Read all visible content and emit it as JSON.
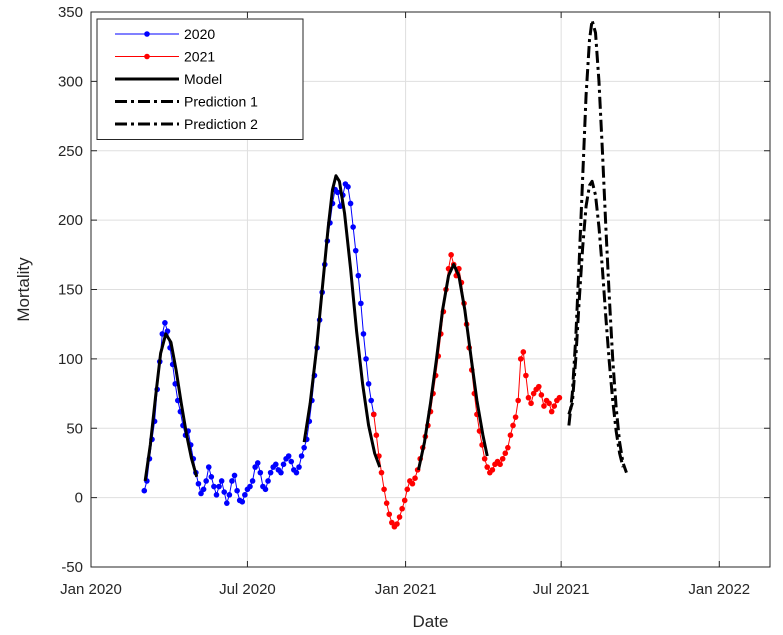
{
  "chart_data": {
    "type": "line",
    "xlabel": "Date",
    "ylabel": "Mortality",
    "xlim": [
      "2020-01-01",
      "2022-03-01"
    ],
    "ylim": [
      -50,
      350
    ],
    "x_ticks": [
      {
        "date": "2020-01-01",
        "label": "Jan 2020"
      },
      {
        "date": "2020-07-01",
        "label": "Jul 2020"
      },
      {
        "date": "2021-01-01",
        "label": "Jan 2021"
      },
      {
        "date": "2021-07-01",
        "label": "Jul 2021"
      },
      {
        "date": "2022-01-01",
        "label": "Jan 2022"
      }
    ],
    "y_ticks": [
      -50,
      0,
      50,
      100,
      150,
      200,
      250,
      300,
      350
    ],
    "grid": true,
    "legend_position": "top-left",
    "series": [
      {
        "name": "2020",
        "color": "#0000ff",
        "style": "line-dot",
        "points": [
          [
            "2020-03-03",
            5
          ],
          [
            "2020-03-06",
            12
          ],
          [
            "2020-03-09",
            28
          ],
          [
            "2020-03-12",
            42
          ],
          [
            "2020-03-15",
            55
          ],
          [
            "2020-03-18",
            78
          ],
          [
            "2020-03-21",
            98
          ],
          [
            "2020-03-24",
            118
          ],
          [
            "2020-03-27",
            126
          ],
          [
            "2020-03-30",
            120
          ],
          [
            "2020-04-02",
            108
          ],
          [
            "2020-04-05",
            96
          ],
          [
            "2020-04-08",
            82
          ],
          [
            "2020-04-11",
            70
          ],
          [
            "2020-04-14",
            62
          ],
          [
            "2020-04-17",
            52
          ],
          [
            "2020-04-20",
            45
          ],
          [
            "2020-04-23",
            48
          ],
          [
            "2020-04-26",
            38
          ],
          [
            "2020-04-29",
            28
          ],
          [
            "2020-05-02",
            18
          ],
          [
            "2020-05-05",
            10
          ],
          [
            "2020-05-08",
            3
          ],
          [
            "2020-05-11",
            6
          ],
          [
            "2020-05-14",
            12
          ],
          [
            "2020-05-17",
            22
          ],
          [
            "2020-05-20",
            15
          ],
          [
            "2020-05-23",
            8
          ],
          [
            "2020-05-26",
            2
          ],
          [
            "2020-05-29",
            8
          ],
          [
            "2020-06-01",
            12
          ],
          [
            "2020-06-04",
            4
          ],
          [
            "2020-06-07",
            -4
          ],
          [
            "2020-06-10",
            2
          ],
          [
            "2020-06-13",
            12
          ],
          [
            "2020-06-16",
            16
          ],
          [
            "2020-06-19",
            5
          ],
          [
            "2020-06-22",
            -2
          ],
          [
            "2020-06-25",
            -3
          ],
          [
            "2020-06-28",
            2
          ],
          [
            "2020-07-01",
            6
          ],
          [
            "2020-07-04",
            8
          ],
          [
            "2020-07-07",
            12
          ],
          [
            "2020-07-10",
            22
          ],
          [
            "2020-07-13",
            25
          ],
          [
            "2020-07-16",
            18
          ],
          [
            "2020-07-19",
            8
          ],
          [
            "2020-07-22",
            6
          ],
          [
            "2020-07-25",
            12
          ],
          [
            "2020-07-28",
            18
          ],
          [
            "2020-07-31",
            22
          ],
          [
            "2020-08-03",
            24
          ],
          [
            "2020-08-06",
            20
          ],
          [
            "2020-08-09",
            18
          ],
          [
            "2020-08-12",
            24
          ],
          [
            "2020-08-15",
            28
          ],
          [
            "2020-08-18",
            30
          ],
          [
            "2020-08-21",
            26
          ],
          [
            "2020-08-24",
            20
          ],
          [
            "2020-08-27",
            18
          ],
          [
            "2020-08-30",
            22
          ],
          [
            "2020-09-02",
            30
          ],
          [
            "2020-09-05",
            36
          ],
          [
            "2020-09-08",
            42
          ],
          [
            "2020-09-11",
            55
          ],
          [
            "2020-09-14",
            70
          ],
          [
            "2020-09-17",
            88
          ],
          [
            "2020-09-20",
            108
          ],
          [
            "2020-09-23",
            128
          ],
          [
            "2020-09-26",
            148
          ],
          [
            "2020-09-29",
            168
          ],
          [
            "2020-10-02",
            185
          ],
          [
            "2020-10-05",
            198
          ],
          [
            "2020-10-08",
            212
          ],
          [
            "2020-10-11",
            222
          ],
          [
            "2020-10-14",
            220
          ],
          [
            "2020-10-17",
            210
          ],
          [
            "2020-10-20",
            218
          ],
          [
            "2020-10-23",
            226
          ],
          [
            "2020-10-26",
            224
          ],
          [
            "2020-10-29",
            212
          ],
          [
            "2020-11-01",
            195
          ],
          [
            "2020-11-04",
            178
          ],
          [
            "2020-11-07",
            160
          ],
          [
            "2020-11-10",
            140
          ],
          [
            "2020-11-13",
            118
          ],
          [
            "2020-11-16",
            100
          ],
          [
            "2020-11-19",
            82
          ],
          [
            "2020-11-22",
            70
          ],
          [
            "2020-11-25",
            60
          ]
        ]
      },
      {
        "name": "2021",
        "color": "#ff0000",
        "style": "line-dot",
        "points": [
          [
            "2020-11-25",
            60
          ],
          [
            "2020-11-28",
            45
          ],
          [
            "2020-12-01",
            30
          ],
          [
            "2020-12-04",
            18
          ],
          [
            "2020-12-07",
            6
          ],
          [
            "2020-12-10",
            -4
          ],
          [
            "2020-12-13",
            -12
          ],
          [
            "2020-12-16",
            -18
          ],
          [
            "2020-12-19",
            -21
          ],
          [
            "2020-12-22",
            -19
          ],
          [
            "2020-12-25",
            -14
          ],
          [
            "2020-12-28",
            -8
          ],
          [
            "2020-12-31",
            -2
          ],
          [
            "2021-01-03",
            6
          ],
          [
            "2021-01-06",
            12
          ],
          [
            "2021-01-09",
            10
          ],
          [
            "2021-01-12",
            14
          ],
          [
            "2021-01-15",
            20
          ],
          [
            "2021-01-18",
            28
          ],
          [
            "2021-01-21",
            36
          ],
          [
            "2021-01-24",
            44
          ],
          [
            "2021-01-27",
            52
          ],
          [
            "2021-01-30",
            62
          ],
          [
            "2021-02-02",
            75
          ],
          [
            "2021-02-05",
            88
          ],
          [
            "2021-02-08",
            102
          ],
          [
            "2021-02-11",
            118
          ],
          [
            "2021-02-14",
            134
          ],
          [
            "2021-02-17",
            150
          ],
          [
            "2021-02-20",
            165
          ],
          [
            "2021-02-23",
            175
          ],
          [
            "2021-02-26",
            168
          ],
          [
            "2021-03-01",
            160
          ],
          [
            "2021-03-04",
            165
          ],
          [
            "2021-03-07",
            155
          ],
          [
            "2021-03-10",
            140
          ],
          [
            "2021-03-13",
            125
          ],
          [
            "2021-03-16",
            108
          ],
          [
            "2021-03-19",
            92
          ],
          [
            "2021-03-22",
            75
          ],
          [
            "2021-03-25",
            60
          ],
          [
            "2021-03-28",
            48
          ],
          [
            "2021-03-31",
            38
          ],
          [
            "2021-04-03",
            28
          ],
          [
            "2021-04-06",
            22
          ],
          [
            "2021-04-09",
            18
          ],
          [
            "2021-04-12",
            20
          ],
          [
            "2021-04-15",
            24
          ],
          [
            "2021-04-18",
            26
          ],
          [
            "2021-04-21",
            24
          ],
          [
            "2021-04-24",
            28
          ],
          [
            "2021-04-27",
            32
          ],
          [
            "2021-04-30",
            36
          ],
          [
            "2021-05-03",
            45
          ],
          [
            "2021-05-06",
            52
          ],
          [
            "2021-05-09",
            58
          ],
          [
            "2021-05-12",
            70
          ],
          [
            "2021-05-15",
            100
          ],
          [
            "2021-05-18",
            105
          ],
          [
            "2021-05-21",
            88
          ],
          [
            "2021-05-24",
            72
          ],
          [
            "2021-05-27",
            68
          ],
          [
            "2021-05-30",
            75
          ],
          [
            "2021-06-02",
            78
          ],
          [
            "2021-06-05",
            80
          ],
          [
            "2021-06-08",
            74
          ],
          [
            "2021-06-11",
            66
          ],
          [
            "2021-06-14",
            70
          ],
          [
            "2021-06-17",
            68
          ],
          [
            "2021-06-20",
            62
          ],
          [
            "2021-06-23",
            66
          ],
          [
            "2021-06-26",
            70
          ],
          [
            "2021-06-29",
            72
          ]
        ]
      },
      {
        "name": "Model",
        "color": "#000000",
        "style": "solid",
        "segments": [
          [
            [
              "2020-03-04",
              12
            ],
            [
              "2020-03-10",
              38
            ],
            [
              "2020-03-16",
              72
            ],
            [
              "2020-03-22",
              104
            ],
            [
              "2020-03-28",
              118
            ],
            [
              "2020-04-03",
              112
            ],
            [
              "2020-04-09",
              92
            ],
            [
              "2020-04-15",
              68
            ],
            [
              "2020-04-21",
              46
            ],
            [
              "2020-04-27",
              28
            ],
            [
              "2020-05-03",
              15
            ]
          ],
          [
            [
              "2020-09-05",
              40
            ],
            [
              "2020-09-12",
              68
            ],
            [
              "2020-09-19",
              105
            ],
            [
              "2020-09-26",
              150
            ],
            [
              "2020-10-03",
              195
            ],
            [
              "2020-10-08",
              222
            ],
            [
              "2020-10-12",
              232
            ],
            [
              "2020-10-16",
              228
            ],
            [
              "2020-10-22",
              205
            ],
            [
              "2020-10-29",
              165
            ],
            [
              "2020-11-05",
              120
            ],
            [
              "2020-11-12",
              82
            ],
            [
              "2020-11-19",
              52
            ],
            [
              "2020-11-26",
              32
            ],
            [
              "2020-12-02",
              22
            ]
          ],
          [
            [
              "2021-01-16",
              20
            ],
            [
              "2021-01-23",
              40
            ],
            [
              "2021-01-30",
              68
            ],
            [
              "2021-02-06",
              100
            ],
            [
              "2021-02-13",
              135
            ],
            [
              "2021-02-20",
              160
            ],
            [
              "2021-02-26",
              168
            ],
            [
              "2021-03-04",
              160
            ],
            [
              "2021-03-11",
              135
            ],
            [
              "2021-03-18",
              102
            ],
            [
              "2021-03-25",
              70
            ],
            [
              "2021-04-01",
              45
            ],
            [
              "2021-04-06",
              30
            ]
          ]
        ]
      },
      {
        "name": "Prediction 1",
        "color": "#000000",
        "style": "dash-dot",
        "points": [
          [
            "2021-07-10",
            52
          ],
          [
            "2021-07-14",
            75
          ],
          [
            "2021-07-18",
            115
          ],
          [
            "2021-07-22",
            170
          ],
          [
            "2021-07-26",
            230
          ],
          [
            "2021-07-30",
            290
          ],
          [
            "2021-08-03",
            330
          ],
          [
            "2021-08-06",
            344
          ],
          [
            "2021-08-10",
            335
          ],
          [
            "2021-08-14",
            300
          ],
          [
            "2021-08-18",
            250
          ],
          [
            "2021-08-22",
            195
          ],
          [
            "2021-08-26",
            145
          ],
          [
            "2021-08-30",
            100
          ],
          [
            "2021-09-03",
            65
          ],
          [
            "2021-09-07",
            40
          ],
          [
            "2021-09-11",
            25
          ],
          [
            "2021-09-15",
            18
          ]
        ]
      },
      {
        "name": "Prediction 2",
        "color": "#000000",
        "style": "dash-dot",
        "points": [
          [
            "2021-07-10",
            60
          ],
          [
            "2021-07-14",
            68
          ],
          [
            "2021-07-18",
            100
          ],
          [
            "2021-07-22",
            142
          ],
          [
            "2021-07-26",
            180
          ],
          [
            "2021-07-30",
            210
          ],
          [
            "2021-08-03",
            225
          ],
          [
            "2021-08-06",
            228
          ],
          [
            "2021-08-10",
            218
          ],
          [
            "2021-08-14",
            195
          ],
          [
            "2021-08-18",
            165
          ],
          [
            "2021-08-22",
            130
          ],
          [
            "2021-08-26",
            98
          ],
          [
            "2021-08-30",
            70
          ],
          [
            "2021-09-03",
            48
          ],
          [
            "2021-09-07",
            32
          ],
          [
            "2021-09-11",
            22
          ]
        ]
      }
    ]
  }
}
